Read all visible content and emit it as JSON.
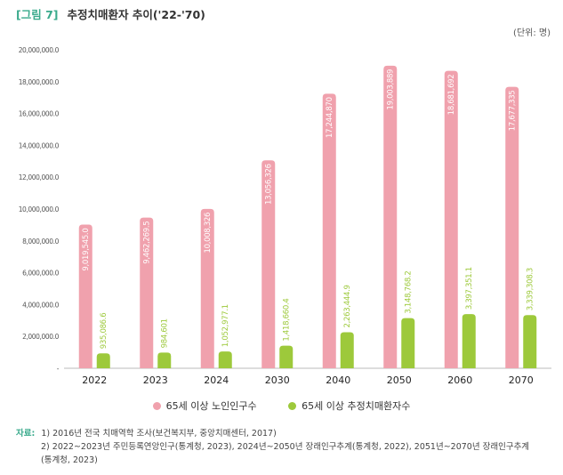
{
  "figure": {
    "label": "[그림 7]",
    "title": "추정치매환자 추이('22-'70)",
    "unit": "(단위: 명)"
  },
  "legend": {
    "series0": "65세 이상 노인인구수",
    "series1": "65세 이상 추정치매환자수"
  },
  "colors": {
    "series0": "#f0a1ad",
    "series1": "#9dc93b",
    "accent": "#3aaa8c"
  },
  "notes": {
    "label": "자료:",
    "line1": "1) 2016년 전국 치매역학 조사(보건복지부, 중앙치매센터, 2017)",
    "line2": "2) 2022~2023년 주민등록연앙인구(통계청, 2023), 2024년~2050년 장래인구추계(통계청, 2022), 2051년~2070년 장래인구추계",
    "line3": "(통계청, 2023)"
  },
  "chart_data": {
    "type": "bar",
    "categories": [
      "2022",
      "2023",
      "2024",
      "2030",
      "2040",
      "2050",
      "2060",
      "2070"
    ],
    "series": [
      {
        "name": "65세 이상 노인인구수",
        "values": [
          9019545,
          9462269.5,
          10008326,
          13056326,
          17244870,
          19003889,
          18681692,
          17677335
        ],
        "labels": [
          "9,019,545.0",
          "9,462,269.5",
          "10,008,326",
          "13,056,326",
          "17,244,870",
          "19,003,889",
          "18,681,692",
          "17,677,335"
        ]
      },
      {
        "name": "65세 이상 추정치매환자수",
        "values": [
          935086.6,
          984601,
          1052977.1,
          1418660.4,
          2263444.9,
          3148768.2,
          3397351.1,
          3339308.3
        ],
        "labels": [
          "935,086.6",
          "984,601",
          "1,052,977.1",
          "1,418,660.4",
          "2,263,444.9",
          "3,148,768.2",
          "3,397,351.1",
          "3,339,308.3"
        ]
      }
    ],
    "ylim": [
      0,
      20000000
    ],
    "yticks": [
      0,
      2000000,
      4000000,
      6000000,
      8000000,
      10000000,
      12000000,
      14000000,
      16000000,
      18000000,
      20000000
    ],
    "ytick_labels": [
      "-",
      "2,000,000.0",
      "4,000,000.0",
      "6,000,000.0",
      "8,000,000.0",
      "10,000,000.0",
      "12,000,000.0",
      "14,000,000.0",
      "16,000,000.0",
      "18,000,000.0",
      "20,000,000.0"
    ],
    "legend_position": "bottom"
  }
}
